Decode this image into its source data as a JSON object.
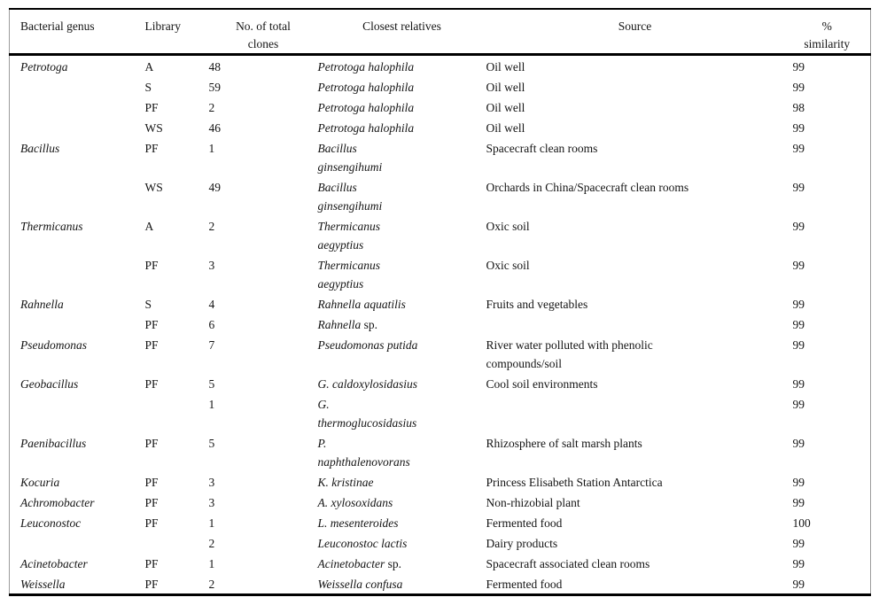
{
  "page": {
    "background": "#ffffff",
    "text_color": "#141414",
    "rule_color": "#000000",
    "frame_color": "#9b9b9b"
  },
  "table": {
    "columns": [
      {
        "label": "Bacterial genus"
      },
      {
        "label": "Library"
      },
      {
        "label": "No. of total\nclones"
      },
      {
        "label": "Closest relatives"
      },
      {
        "label": "Source"
      },
      {
        "label": "%\nsimilarity"
      }
    ],
    "rows": [
      {
        "genus": "Petrotoga",
        "library": "A",
        "clones": "48",
        "relative": "Petrotoga halophila",
        "relative_suffix": "",
        "source": "Oil well",
        "similarity": "99"
      },
      {
        "genus": "",
        "library": "S",
        "clones": "59",
        "relative": "Petrotoga halophila",
        "relative_suffix": "",
        "source": "Oil well",
        "similarity": "99"
      },
      {
        "genus": "",
        "library": "PF",
        "clones": "2",
        "relative": "Petrotoga halophila",
        "relative_suffix": "",
        "source": "Oil well",
        "similarity": "98"
      },
      {
        "genus": "",
        "library": "WS",
        "clones": "46",
        "relative": "Petrotoga halophila",
        "relative_suffix": "",
        "source": "Oil well",
        "similarity": "99"
      },
      {
        "genus": "Bacillus",
        "library": "PF",
        "clones": "1",
        "relative": "Bacillus\nginsengihumi",
        "relative_suffix": "",
        "source": "Spacecraft clean rooms",
        "similarity": "99"
      },
      {
        "genus": "",
        "library": "WS",
        "clones": "49",
        "relative": "Bacillus\nginsengihumi",
        "relative_suffix": "",
        "source": "Orchards in China/Spacecraft clean rooms",
        "similarity": "99"
      },
      {
        "genus": "Thermicanus",
        "library": "A",
        "clones": "2",
        "relative": "Thermicanus\naegyptius",
        "relative_suffix": "",
        "source": "Oxic soil",
        "similarity": "99"
      },
      {
        "genus": "",
        "library": "PF",
        "clones": "3",
        "relative": "Thermicanus\naegyptius",
        "relative_suffix": "",
        "source": "Oxic soil",
        "similarity": "99"
      },
      {
        "genus": "Rahnella",
        "library": "S",
        "clones": "4",
        "relative": "Rahnella aquatilis",
        "relative_suffix": "",
        "source": "Fruits and vegetables",
        "similarity": "99"
      },
      {
        "genus": "",
        "library": "PF",
        "clones": "6",
        "relative": "Rahnella",
        "relative_suffix": " sp.",
        "source": "",
        "similarity": "99"
      },
      {
        "genus": "Pseudomonas",
        "library": "PF",
        "clones": "7",
        "relative": "Pseudomonas putida",
        "relative_suffix": "",
        "source": "River water polluted with phenolic\ncompounds/soil",
        "similarity": "99"
      },
      {
        "genus": "Geobacillus",
        "library": "PF",
        "clones": "5",
        "relative": "G. caldoxylosidasius",
        "relative_suffix": "",
        "source": "Cool soil environments",
        "similarity": "99"
      },
      {
        "genus": "",
        "library": "",
        "clones": "1",
        "relative": "G.\nthermoglucosidasius",
        "relative_suffix": "",
        "source": "",
        "similarity": "99"
      },
      {
        "genus": "Paenibacillus",
        "library": "PF",
        "clones": "5",
        "relative": "P.\nnaphthalenovorans",
        "relative_suffix": "",
        "source": "Rhizosphere of salt marsh plants",
        "similarity": "99"
      },
      {
        "genus": "Kocuria",
        "library": "PF",
        "clones": "3",
        "relative": "K. kristinae",
        "relative_suffix": "",
        "source": "Princess Elisabeth Station Antarctica",
        "similarity": "99"
      },
      {
        "genus": "Achromobacter",
        "library": "PF",
        "clones": "3",
        "relative": "A. xylosoxidans",
        "relative_suffix": "",
        "source": "Non-rhizobial plant",
        "similarity": "99"
      },
      {
        "genus": "Leuconostoc",
        "library": "PF",
        "clones": "1",
        "relative": "L. mesenteroides",
        "relative_suffix": "",
        "source": "Fermented food",
        "similarity": "100"
      },
      {
        "genus": "",
        "library": "",
        "clones": "2",
        "relative": "Leuconostoc lactis",
        "relative_suffix": "",
        "source": "Dairy products",
        "similarity": "99"
      },
      {
        "genus": "Acinetobacter",
        "library": "PF",
        "clones": "1",
        "relative": "Acinetobacter",
        "relative_suffix": " sp.",
        "source": "Spacecraft associated clean rooms",
        "similarity": "99"
      },
      {
        "genus": "Weissella",
        "library": "PF",
        "clones": "2",
        "relative": "Weissella confusa",
        "relative_suffix": "",
        "source": "Fermented food",
        "similarity": "99"
      }
    ]
  }
}
